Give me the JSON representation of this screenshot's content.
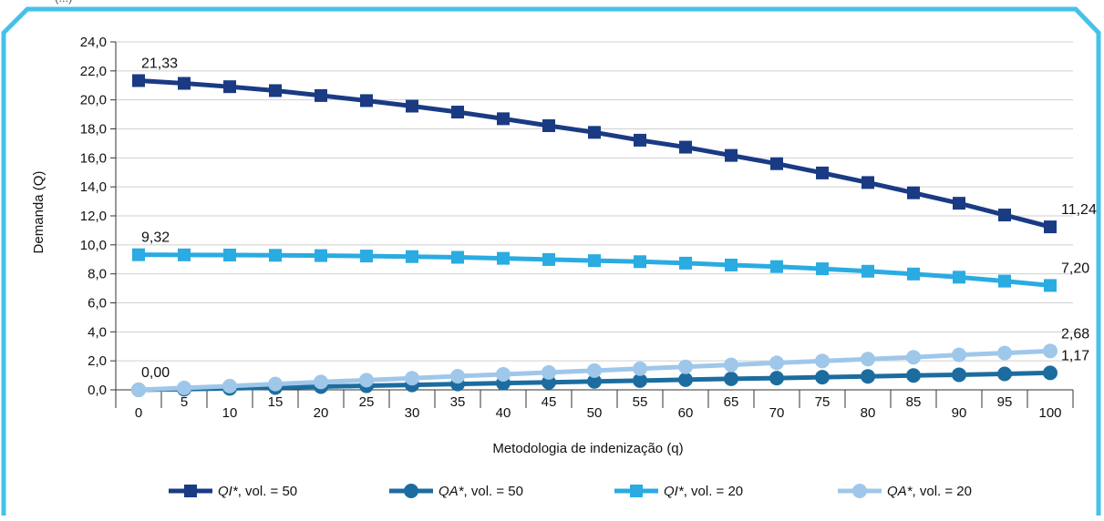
{
  "header_fragment": "(...)",
  "colors": {
    "frame": "#45c1ea",
    "grid": "#d0d0d0",
    "axis": "#333333"
  },
  "chart_data": {
    "type": "line",
    "xlabel": "Metodologia de indenização (q)",
    "ylabel": "Demanda (Q)",
    "ylim": [
      0,
      24
    ],
    "y_ticks": [
      "0,0",
      "2,0",
      "4,0",
      "6,0",
      "8,0",
      "10,0",
      "12,0",
      "14,0",
      "16,0",
      "18,0",
      "20,0",
      "22,0",
      "24,0"
    ],
    "categories": [
      "0",
      "5",
      "10",
      "15",
      "20",
      "25",
      "30",
      "35",
      "40",
      "45",
      "50",
      "55",
      "60",
      "65",
      "70",
      "75",
      "80",
      "85",
      "90",
      "95",
      "100"
    ],
    "grid": "horizontal",
    "legend_position": "bottom",
    "series": [
      {
        "name": "QI*, vol. = 50",
        "name_italic": "QI*",
        "name_rest": ", vol. = 50",
        "color": "#1a3b84",
        "marker": "square",
        "values": [
          21.33,
          21.14,
          20.91,
          20.64,
          20.3,
          19.95,
          19.57,
          19.16,
          18.7,
          18.22,
          17.76,
          17.22,
          16.74,
          16.17,
          15.6,
          14.96,
          14.3,
          13.59,
          12.87,
          12.06,
          11.24
        ],
        "labels": {
          "first": "21,33",
          "last": "11,24"
        }
      },
      {
        "name": "QA*, vol. = 50",
        "name_italic": "QA*",
        "name_rest": ", vol. = 50",
        "color": "#1c6c9f",
        "marker": "circle",
        "values": [
          0.0,
          0.05,
          0.1,
          0.16,
          0.22,
          0.28,
          0.34,
          0.4,
          0.46,
          0.52,
          0.58,
          0.64,
          0.7,
          0.76,
          0.81,
          0.87,
          0.93,
          0.99,
          1.04,
          1.1,
          1.17
        ],
        "labels": {
          "first": "",
          "last": "1,17"
        }
      },
      {
        "name": "QI*, vol. = 20",
        "name_italic": "QI*",
        "name_rest": ", vol. = 20",
        "color": "#2aabe2",
        "marker": "square",
        "values": [
          9.32,
          9.31,
          9.3,
          9.28,
          9.26,
          9.23,
          9.19,
          9.14,
          9.07,
          8.99,
          8.91,
          8.84,
          8.74,
          8.61,
          8.5,
          8.35,
          8.18,
          7.99,
          7.77,
          7.5,
          7.2
        ],
        "labels": {
          "first": "9,32",
          "last": "7,20"
        }
      },
      {
        "name": "QA*, vol. = 20",
        "name_italic": "QA*",
        "name_rest": ", vol. = 20",
        "color": "#9fc7ea",
        "marker": "circle",
        "values": [
          0.0,
          0.13,
          0.26,
          0.4,
          0.54,
          0.67,
          0.8,
          0.94,
          1.07,
          1.2,
          1.33,
          1.46,
          1.59,
          1.72,
          1.86,
          1.99,
          2.12,
          2.25,
          2.41,
          2.54,
          2.68
        ],
        "labels": {
          "first": "0,00",
          "last": "2,68"
        }
      }
    ]
  }
}
